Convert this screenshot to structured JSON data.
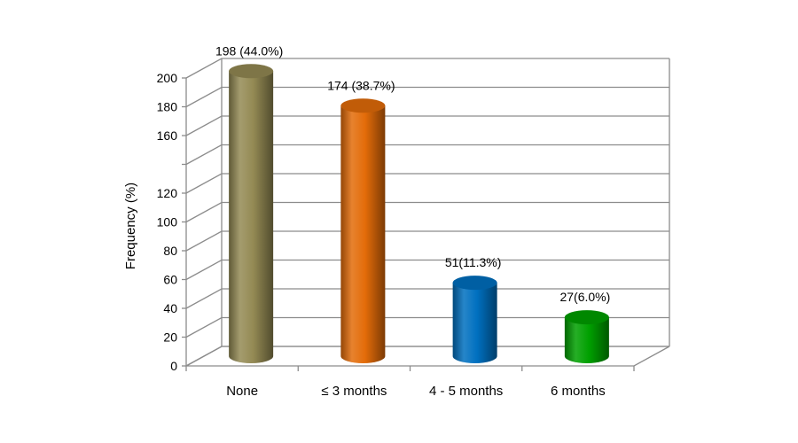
{
  "chart_data": {
    "type": "bar",
    "style": "3d-cylinder",
    "title": "",
    "xlabel": "",
    "ylabel": "Frequency (%)",
    "ylim": [
      0,
      200
    ],
    "yticks": [
      "0",
      "20",
      "40",
      "60",
      "80",
      "100",
      "120",
      "",
      "160",
      "180",
      "200"
    ],
    "grid": true,
    "legend": "none",
    "categories": [
      "None",
      "≤ 3 months",
      "4 - 5 months",
      "6 months"
    ],
    "values": [
      198,
      174,
      51,
      27
    ],
    "data_labels": [
      "198 (44.0%)",
      "174 (38.7%)",
      "51(11.3%)",
      "27(6.0%)"
    ],
    "colors": [
      "#948a54",
      "#e36c09",
      "#0070c0",
      "#00a000"
    ]
  }
}
